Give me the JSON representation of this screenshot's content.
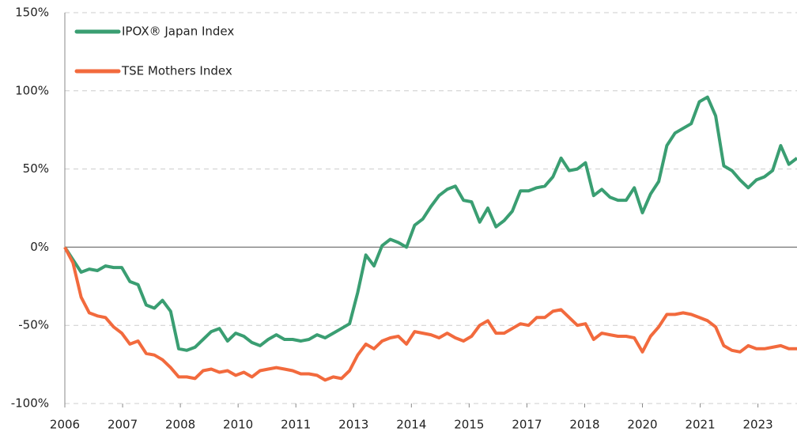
{
  "chart_data": {
    "type": "line",
    "x": [
      2006.0,
      2006.2,
      2006.4,
      2006.6,
      2006.8,
      2007.0,
      2007.2,
      2007.4,
      2007.6,
      2007.8,
      2008.0,
      2008.2,
      2008.4,
      2008.6,
      2008.8,
      2009.0,
      2009.2,
      2009.4,
      2009.6,
      2009.8,
      2010.0,
      2010.2,
      2010.4,
      2010.6,
      2010.8,
      2011.0,
      2011.2,
      2011.4,
      2011.6,
      2011.8,
      2012.0,
      2012.2,
      2012.4,
      2012.6,
      2012.8,
      2013.0,
      2013.2,
      2013.4,
      2013.6,
      2013.8,
      2014.0,
      2014.2,
      2014.4,
      2014.6,
      2014.8,
      2015.0,
      2015.2,
      2015.4,
      2015.6,
      2015.8,
      2016.0,
      2016.2,
      2016.4,
      2016.6,
      2016.8,
      2017.0,
      2017.2,
      2017.4,
      2017.6,
      2017.8,
      2018.0,
      2018.2,
      2018.4,
      2018.6,
      2018.8,
      2019.0,
      2019.2,
      2019.4,
      2019.6,
      2019.8,
      2020.0,
      2020.2,
      2020.4,
      2020.6,
      2020.8,
      2021.0,
      2021.2,
      2021.4,
      2021.6,
      2021.8,
      2022.0,
      2022.2,
      2022.4,
      2022.6,
      2022.8,
      2023.0,
      2023.2,
      2023.4,
      2023.6,
      2023.8,
      2024.0
    ],
    "series": [
      {
        "name": "IPOX® Japan Index",
        "color": "#3a9e72",
        "values": [
          0,
          -8,
          -16,
          -14,
          -15,
          -12,
          -13,
          -13,
          -22,
          -24,
          -37,
          -39,
          -34,
          -41,
          -65,
          -66,
          -64,
          -59,
          -54,
          -52,
          -60,
          -55,
          -57,
          -61,
          -63,
          -59,
          -56,
          -59,
          -59,
          -60,
          -59,
          -56,
          -58,
          -55,
          -52,
          -49,
          -29,
          -5,
          -12,
          1,
          5,
          3,
          0,
          14,
          18,
          26,
          33,
          37,
          39,
          30,
          29,
          16,
          25,
          13,
          17,
          23,
          36,
          36,
          38,
          39,
          45,
          57,
          49,
          50,
          54,
          33,
          37,
          32,
          30,
          30,
          38,
          22,
          34,
          42,
          65,
          73,
          76,
          79,
          93,
          96,
          84,
          52,
          49,
          43,
          38,
          43,
          45,
          49,
          65,
          53,
          57
        ]
      },
      {
        "name": "TSE Mothers Index",
        "color": "#f26a3d",
        "values": [
          0,
          -10,
          -32,
          -42,
          -44,
          -45,
          -51,
          -55,
          -62,
          -60,
          -68,
          -69,
          -72,
          -77,
          -83,
          -83,
          -84,
          -79,
          -78,
          -80,
          -79,
          -82,
          -80,
          -83,
          -79,
          -78,
          -77,
          -78,
          -79,
          -81,
          -81,
          -82,
          -85,
          -83,
          -84,
          -79,
          -69,
          -62,
          -65,
          -60,
          -58,
          -57,
          -62,
          -54,
          -55,
          -56,
          -58,
          -55,
          -58,
          -60,
          -57,
          -50,
          -47,
          -55,
          -55,
          -52,
          -49,
          -50,
          -45,
          -45,
          -41,
          -40,
          -45,
          -50,
          -49,
          -59,
          -55,
          -56,
          -57,
          -57,
          -58,
          -67,
          -57,
          -51,
          -43,
          -43,
          -42,
          -43,
          -45,
          -47,
          -51,
          -63,
          -66,
          -67,
          -63,
          -65,
          -65,
          -64,
          -63,
          -65,
          -65
        ]
      }
    ],
    "xlim": [
      2006,
      2024
    ],
    "xticks": [
      {
        "value": 2006.0,
        "label": "2006"
      },
      {
        "value": 2007.42,
        "label": "2007"
      },
      {
        "value": 2008.84,
        "label": "2008"
      },
      {
        "value": 2010.26,
        "label": "2010"
      },
      {
        "value": 2011.68,
        "label": "2011"
      },
      {
        "value": 2013.1,
        "label": "2013"
      },
      {
        "value": 2014.52,
        "label": "2014"
      },
      {
        "value": 2015.94,
        "label": "2015"
      },
      {
        "value": 2017.36,
        "label": "2017"
      },
      {
        "value": 2018.78,
        "label": "2018"
      },
      {
        "value": 2020.2,
        "label": "2020"
      },
      {
        "value": 2021.62,
        "label": "2021"
      },
      {
        "value": 2023.04,
        "label": "2023"
      }
    ],
    "ylim": [
      -100,
      150
    ],
    "yticks": [
      {
        "value": -100,
        "label": "-100%"
      },
      {
        "value": -50,
        "label": "-50%"
      },
      {
        "value": 0,
        "label": "0%"
      },
      {
        "value": 50,
        "label": "50%"
      },
      {
        "value": 100,
        "label": "100%"
      },
      {
        "value": 150,
        "label": "150%"
      }
    ],
    "grid": true,
    "legend": "top-left"
  }
}
